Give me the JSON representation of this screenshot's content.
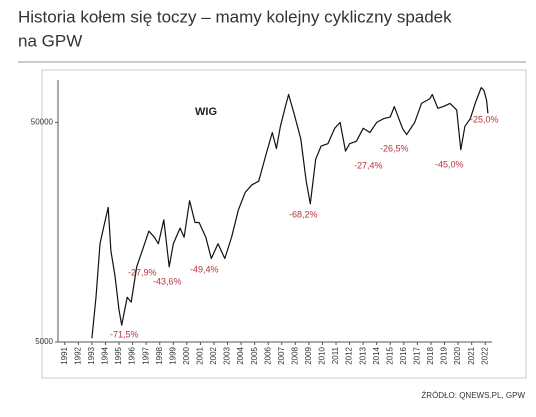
{
  "chart_data": {
    "type": "line",
    "title_lines": [
      "Historia kołem się toczy – mamy kolejny cykliczny spadek",
      "na GPW"
    ],
    "inner_label": "WIG",
    "source": "ŹRÓDŁO: QNEWS.PL, GPW",
    "log_scale": true,
    "xlim": [
      1990.5,
      2022.5
    ],
    "xticks": [
      1991,
      1992,
      1993,
      1994,
      1995,
      1996,
      1997,
      1998,
      1999,
      2000,
      2001,
      2002,
      2003,
      2004,
      2005,
      2006,
      2007,
      2008,
      2009,
      2010,
      2011,
      2012,
      2013,
      2014,
      2015,
      2016,
      2017,
      2018,
      2019,
      2020,
      2021,
      2022
    ],
    "ylim": [
      5000,
      78000
    ],
    "yticks": [
      5000,
      50000
    ],
    "annotations": [
      "-71,5%",
      "-27,9%",
      "-43,6%",
      "-49,4%",
      "-68,2%",
      "-27,4%",
      "-26,5%",
      "-45,0%",
      "-25,0%"
    ],
    "series": [
      {
        "name": "WIG",
        "color": "#111111",
        "x": [
          1993.0,
          1993.3,
          1993.6,
          1993.9,
          1994.2,
          1994.4,
          1994.7,
          1995.0,
          1995.2,
          1995.6,
          1995.9,
          1996.3,
          1996.8,
          1997.2,
          1997.6,
          1997.9,
          1998.3,
          1998.7,
          1999.0,
          1999.5,
          1999.8,
          2000.2,
          2000.6,
          2000.9,
          2001.4,
          2001.8,
          2002.3,
          2002.8,
          2003.3,
          2003.8,
          2004.3,
          2004.8,
          2005.3,
          2005.8,
          2006.3,
          2006.6,
          2006.9,
          2007.3,
          2007.5,
          2007.9,
          2008.4,
          2008.8,
          2009.1,
          2009.5,
          2009.9,
          2010.4,
          2010.9,
          2011.3,
          2011.7,
          2012.0,
          2012.5,
          2013.0,
          2013.5,
          2014.0,
          2014.5,
          2015.0,
          2015.3,
          2015.9,
          2016.2,
          2016.8,
          2017.3,
          2017.9,
          2018.1,
          2018.5,
          2018.9,
          2019.4,
          2019.9,
          2020.2,
          2020.5,
          2020.9,
          2021.3,
          2021.7,
          2021.9,
          2022.1,
          2022.2
        ],
        "values": [
          5200,
          8000,
          14000,
          17000,
          20500,
          13000,
          10000,
          7000,
          5970,
          8000,
          7600,
          11000,
          13500,
          16000,
          15000,
          14000,
          18000,
          11000,
          14000,
          16500,
          15000,
          22000,
          17500,
          17500,
          15000,
          12000,
          14000,
          12000,
          15000,
          20000,
          24000,
          26000,
          27000,
          35000,
          45000,
          38000,
          48000,
          60000,
          67000,
          55000,
          42000,
          27000,
          21300,
          34000,
          39000,
          40000,
          47000,
          50000,
          37000,
          40000,
          41000,
          47000,
          45000,
          50000,
          52000,
          53000,
          59000,
          47000,
          44000,
          50000,
          61000,
          64000,
          67000,
          58000,
          59000,
          61000,
          57000,
          37500,
          48000,
          52000,
          62000,
          72000,
          70000,
          63000,
          55000
        ]
      }
    ]
  }
}
